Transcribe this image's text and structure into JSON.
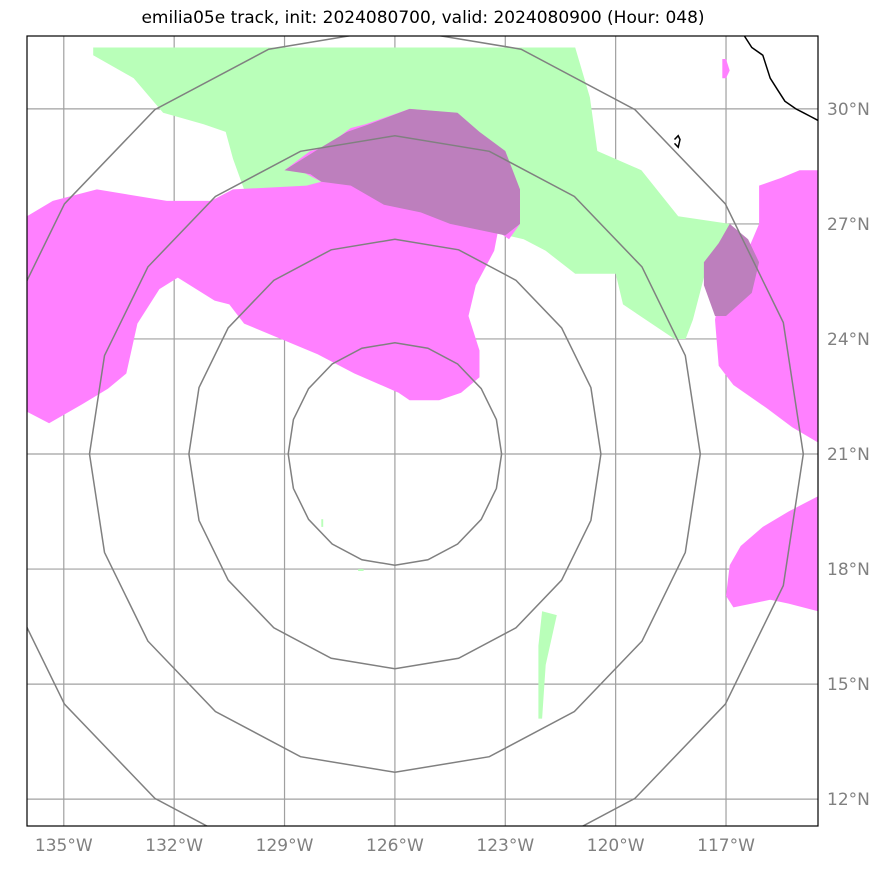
{
  "title": "emilia05e track, init: 2024080700, valid: 2024080900 (Hour: 048)",
  "map": {
    "lon_range": [
      -136,
      -114.5
    ],
    "lat_range": [
      11.3,
      31.9
    ],
    "lon_ticks": [
      -135,
      -132,
      -129,
      -126,
      -123,
      -120,
      -117
    ],
    "lat_ticks": [
      12,
      15,
      18,
      21,
      24,
      27,
      30
    ],
    "lon_labels": [
      "135°W",
      "132°W",
      "129°W",
      "126°W",
      "123°W",
      "120°W",
      "117°W"
    ],
    "lat_labels": [
      "12°N",
      "15°N",
      "18°N",
      "21°N",
      "24°N",
      "27°N",
      "30°N"
    ],
    "grid": true,
    "grid_color": "#a0a0a0",
    "ring_color": "#808080",
    "center": {
      "lon": -126,
      "lat": 21
    },
    "ring_radii_deg": [
      2.9,
      5.6,
      8.3,
      11.1
    ],
    "colors": {
      "wind": "#b9ffb9",
      "vorticity": "#ff80ff",
      "overlap": "#bd7fbd",
      "coast": "#000000"
    },
    "wind_polygons": [
      [
        [
          -134.2,
          31.6
        ],
        [
          -121.1,
          31.6
        ],
        [
          -120.7,
          30.3
        ],
        [
          -120.5,
          28.9
        ],
        [
          -119.3,
          28.4
        ],
        [
          -118.3,
          27.2
        ],
        [
          -116.9,
          27.0
        ],
        [
          -117.6,
          25.6
        ],
        [
          -117.9,
          24.5
        ],
        [
          -118.1,
          24.0
        ],
        [
          -118.4,
          24.0
        ],
        [
          -119.8,
          24.9
        ],
        [
          -120.0,
          25.7
        ],
        [
          -121.1,
          25.7
        ],
        [
          -121.9,
          26.3
        ],
        [
          -122.5,
          26.6
        ],
        [
          -123.4,
          26.8
        ],
        [
          -125.3,
          27.0
        ],
        [
          -125.8,
          27.2
        ],
        [
          -126.3,
          27.1
        ],
        [
          -128.5,
          26.7
        ],
        [
          -128.6,
          27.1
        ],
        [
          -128.9,
          27.2
        ],
        [
          -129.0,
          27.7
        ],
        [
          -130.1,
          27.9
        ],
        [
          -130.4,
          28.7
        ],
        [
          -130.6,
          29.4
        ],
        [
          -131.2,
          29.6
        ],
        [
          -132.3,
          29.9
        ],
        [
          -133.1,
          30.8
        ],
        [
          -134.2,
          31.4
        ]
      ],
      [
        [
          -122.0,
          16.9
        ],
        [
          -121.6,
          16.8
        ],
        [
          -121.9,
          15.5
        ],
        [
          -122.0,
          14.1
        ],
        [
          -122.1,
          14.1
        ],
        [
          -122.1,
          16.0
        ]
      ],
      [
        [
          -128.0,
          19.3
        ],
        [
          -127.95,
          19.3
        ],
        [
          -127.95,
          19.1
        ],
        [
          -128.0,
          19.1
        ]
      ],
      [
        [
          -127.0,
          18.0
        ],
        [
          -126.85,
          18.0
        ],
        [
          -126.85,
          17.95
        ],
        [
          -127.0,
          17.95
        ]
      ]
    ],
    "vorticity_polygons": [
      [
        [
          -136,
          27.2
        ],
        [
          -135.3,
          27.6
        ],
        [
          -134.1,
          27.9
        ],
        [
          -132.2,
          27.6
        ],
        [
          -131.0,
          27.6
        ],
        [
          -130.4,
          27.9
        ],
        [
          -128.4,
          28.0
        ],
        [
          -128.0,
          28.1
        ],
        [
          -127.0,
          28.0
        ],
        [
          -125.3,
          27.9
        ],
        [
          -124.6,
          27.5
        ],
        [
          -123.6,
          27.1
        ],
        [
          -123.2,
          26.8
        ],
        [
          -123.3,
          26.3
        ],
        [
          -123.8,
          25.4
        ],
        [
          -124.0,
          24.6
        ],
        [
          -123.7,
          23.7
        ],
        [
          -123.7,
          23.0
        ],
        [
          -124.2,
          22.6
        ],
        [
          -124.8,
          22.4
        ],
        [
          -125.6,
          22.4
        ],
        [
          -125.9,
          22.6
        ],
        [
          -127.1,
          23.1
        ],
        [
          -128.1,
          23.6
        ],
        [
          -130.1,
          24.4
        ],
        [
          -130.5,
          24.9
        ],
        [
          -130.9,
          25.0
        ],
        [
          -131.9,
          25.6
        ],
        [
          -132.4,
          25.3
        ],
        [
          -133.0,
          24.4
        ],
        [
          -133.3,
          23.1
        ],
        [
          -133.8,
          22.7
        ],
        [
          -134.5,
          22.3
        ],
        [
          -135.4,
          21.8
        ],
        [
          -136,
          22.1
        ]
      ],
      [
        [
          -125.6,
          30.0
        ],
        [
          -124.4,
          29.9
        ],
        [
          -123.7,
          29.3
        ],
        [
          -123.1,
          28.9
        ],
        [
          -122.6,
          27.8
        ],
        [
          -122.6,
          27.0
        ],
        [
          -122.9,
          26.6
        ],
        [
          -123.2,
          26.8
        ],
        [
          -124.6,
          27.1
        ],
        [
          -125.3,
          27.4
        ],
        [
          -126.3,
          27.5
        ],
        [
          -127.2,
          28.0
        ],
        [
          -128.0,
          28.1
        ],
        [
          -128.6,
          28.4
        ],
        [
          -129.0,
          28.4
        ],
        [
          -128.3,
          28.9
        ],
        [
          -127.9,
          29.0
        ],
        [
          -127.2,
          29.5
        ],
        [
          -126.8,
          29.6
        ]
      ],
      [
        [
          -114.5,
          28.4
        ],
        [
          -115.0,
          28.4
        ],
        [
          -115.5,
          28.2
        ],
        [
          -116.1,
          28.0
        ],
        [
          -116.1,
          27.0
        ],
        [
          -116.9,
          25.2
        ],
        [
          -117.2,
          25.0
        ],
        [
          -117.3,
          24.5
        ],
        [
          -117.2,
          23.3
        ],
        [
          -116.8,
          22.8
        ],
        [
          -115.9,
          22.2
        ],
        [
          -115.2,
          21.7
        ],
        [
          -114.5,
          21.3
        ]
      ],
      [
        [
          -114.5,
          19.9
        ],
        [
          -115.3,
          19.5
        ],
        [
          -116.0,
          19.1
        ],
        [
          -116.6,
          18.6
        ],
        [
          -116.9,
          18.1
        ],
        [
          -117.0,
          17.3
        ],
        [
          -116.8,
          17.0
        ],
        [
          -116.3,
          17.1
        ],
        [
          -115.8,
          17.2
        ],
        [
          -115.3,
          17.1
        ],
        [
          -114.5,
          16.9
        ]
      ],
      [
        [
          -117.1,
          31.3
        ],
        [
          -117.0,
          31.3
        ],
        [
          -116.9,
          31.0
        ],
        [
          -117.0,
          30.8
        ],
        [
          -117.1,
          30.8
        ]
      ]
    ],
    "overlap_polygons": [
      [
        [
          -125.6,
          30.0
        ],
        [
          -124.3,
          29.9
        ],
        [
          -123.7,
          29.4
        ],
        [
          -123.0,
          28.9
        ],
        [
          -122.6,
          27.9
        ],
        [
          -122.6,
          27.0
        ],
        [
          -123.0,
          26.7
        ],
        [
          -124.5,
          27.0
        ],
        [
          -125.3,
          27.3
        ],
        [
          -126.3,
          27.5
        ],
        [
          -127.2,
          28.0
        ],
        [
          -128.0,
          28.1
        ],
        [
          -128.3,
          28.3
        ],
        [
          -129.0,
          28.4
        ],
        [
          -128.0,
          29.0
        ],
        [
          -127.3,
          29.4
        ],
        [
          -126.7,
          29.6
        ]
      ],
      [
        [
          -116.9,
          27.0
        ],
        [
          -116.4,
          26.6
        ],
        [
          -116.1,
          26.0
        ],
        [
          -116.3,
          25.2
        ],
        [
          -117.0,
          24.6
        ],
        [
          -117.3,
          24.6
        ],
        [
          -117.6,
          25.4
        ],
        [
          -117.6,
          26.0
        ],
        [
          -117.2,
          26.5
        ]
      ]
    ],
    "coastlines": [
      [
        [
          -116.5,
          31.9
        ],
        [
          -116.3,
          31.6
        ],
        [
          -116.0,
          31.4
        ],
        [
          -115.9,
          31.1
        ],
        [
          -115.8,
          30.8
        ],
        [
          -115.6,
          30.5
        ],
        [
          -115.4,
          30.2
        ],
        [
          -115.1,
          30.0
        ],
        [
          -114.9,
          29.9
        ],
        [
          -114.7,
          29.8
        ],
        [
          -114.5,
          29.7
        ]
      ],
      [
        [
          -118.4,
          29.2
        ],
        [
          -118.3,
          29.3
        ],
        [
          -118.25,
          29.2
        ],
        [
          -118.3,
          29.0
        ],
        [
          -118.4,
          29.1
        ]
      ]
    ]
  }
}
